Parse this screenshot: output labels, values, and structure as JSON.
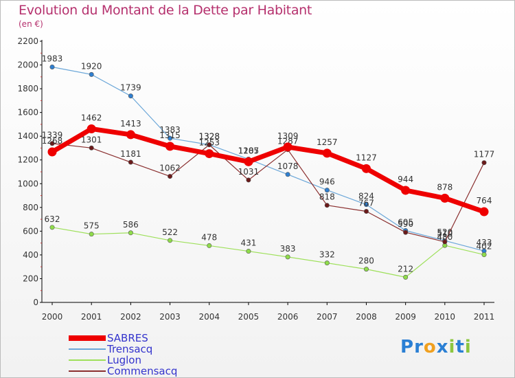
{
  "chart_data": {
    "type": "line",
    "title": "Evolution du Montant de la Dette par Habitant",
    "subtitle": "(en €)",
    "categories": [
      "2000",
      "2001",
      "2002",
      "2003",
      "2004",
      "2005",
      "2006",
      "2007",
      "2008",
      "2009",
      "2010",
      "2011"
    ],
    "ylim": [
      0,
      2200
    ],
    "yticks": [
      0,
      200,
      400,
      600,
      800,
      1000,
      1200,
      1400,
      1600,
      1800,
      2000,
      2200
    ],
    "grid": false,
    "legend_position": "bottom-left",
    "series": [
      {
        "name": "Trensacq",
        "color": "#6aa6d8",
        "marker": "#2f7fd0",
        "width": 1.2,
        "values": [
          1983,
          1920,
          1739,
          1383,
          1328,
          1207,
          1078,
          946,
          824,
          605,
          520,
          433
        ]
      },
      {
        "name": "Luglon",
        "color": "#9ee05a",
        "marker": "#8fdc4a",
        "width": 1.2,
        "values": [
          632,
          575,
          586,
          522,
          478,
          431,
          383,
          332,
          280,
          212,
          480,
          402
        ]
      },
      {
        "name": "Commensacq",
        "color": "#8a2f2f",
        "marker": "#6b1a1a",
        "width": 1.2,
        "values": [
          1339,
          1301,
          1181,
          1062,
          1328,
          1031,
          1287,
          818,
          767,
          590,
          510,
          1177
        ]
      },
      {
        "name": "SABRES",
        "color": "#ee0000",
        "marker": "#ee0000",
        "width": 7,
        "values": [
          1268,
          1462,
          1413,
          1315,
          1253,
          1185,
          1309,
          1257,
          1127,
          944,
          878,
          764
        ]
      }
    ]
  },
  "legend": [
    {
      "label": "SABRES",
      "color": "#ee0000",
      "thickness": 8
    },
    {
      "label": "Trensacq",
      "color": "#6aa6d8",
      "thickness": 2
    },
    {
      "label": "Luglon",
      "color": "#9ee05a",
      "thickness": 2
    },
    {
      "label": "Commensacq",
      "color": "#8a2f2f",
      "thickness": 2
    }
  ],
  "logo": {
    "letters": [
      "P",
      "r",
      "o",
      "x",
      "i",
      "t",
      "i"
    ],
    "colors": [
      "#2a7fd4",
      "#2a7fd4",
      "#f0a020",
      "#2a7fd4",
      "#8cc63f",
      "#2a7fd4",
      "#8cc63f"
    ]
  }
}
